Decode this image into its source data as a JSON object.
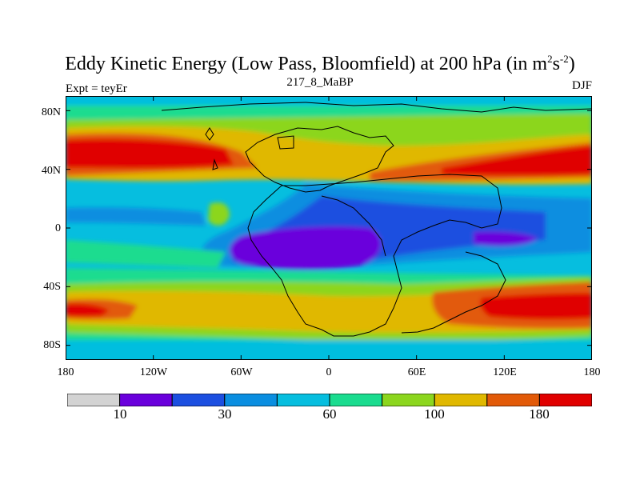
{
  "title": {
    "main": "Eddy Kinetic Energy (Low Pass, Bloomfield) at 200 hPa (in m",
    "sup1": "2",
    "mid": "s",
    "sup2": "-2",
    "end": ")"
  },
  "left_label": "Expt = teyEr",
  "center_label": "217_8_MaBP",
  "right_label": "DJF",
  "lat_ticks": [
    "80N",
    "40N",
    "0",
    "40S",
    "80S"
  ],
  "lon_ticks": [
    "180",
    "120W",
    "60W",
    "0",
    "60E",
    "120E",
    "180"
  ],
  "colorbar": {
    "labels": [
      "10",
      "30",
      "60",
      "100",
      "180"
    ],
    "colors": [
      "#d3d3d3",
      "#6a00dc",
      "#1c4fe0",
      "#0a8ee0",
      "#06bedf",
      "#1adc8f",
      "#8cd61e",
      "#e0b800",
      "#e25a08",
      "#e00000"
    ]
  }
}
